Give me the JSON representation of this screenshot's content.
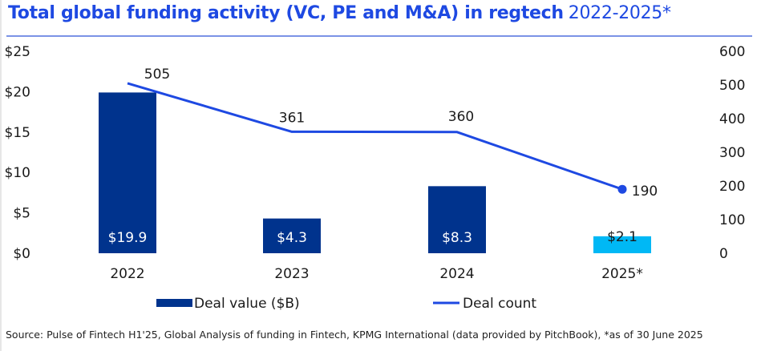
{
  "title": {
    "main": "Total global funding activity (VC, PE and M&A) in regtech",
    "period": "2022-2025*"
  },
  "chart_data": {
    "type": "bar",
    "title": "Total global funding activity (VC, PE and M&A) in regtech 2022-2025*",
    "categories": [
      "2022",
      "2023",
      "2024",
      "2025*"
    ],
    "series": [
      {
        "name": "Deal value ($B)",
        "type": "bar",
        "axis": "left",
        "values": [
          19.9,
          4.3,
          8.3,
          2.1
        ],
        "labels": [
          "$19.9",
          "$4.3",
          "$8.3",
          "$2.1"
        ],
        "colors": [
          "#00338d",
          "#00338d",
          "#00338d",
          "#00b8f5"
        ]
      },
      {
        "name": "Deal count",
        "type": "line",
        "axis": "right",
        "values": [
          505,
          361,
          360,
          190
        ],
        "labels": [
          "505",
          "361",
          "360",
          "190"
        ],
        "color": "#1e49e2",
        "end_marker": true
      }
    ],
    "left_axis": {
      "ylim": [
        0,
        25
      ],
      "ticks": [
        0,
        5,
        10,
        15,
        20,
        25
      ],
      "tick_labels": [
        "$0",
        "$5",
        "$10",
        "$15",
        "$20",
        "$25"
      ]
    },
    "right_axis": {
      "ylim": [
        0,
        600
      ],
      "ticks": [
        0,
        100,
        200,
        300,
        400,
        500,
        600
      ],
      "tick_labels": [
        "0",
        "100",
        "200",
        "300",
        "400",
        "500",
        "600"
      ]
    },
    "xlabel": "",
    "ylabel": "",
    "grid": false,
    "legend": {
      "position": "bottom",
      "entries": [
        "Deal value ($B)",
        "Deal count"
      ]
    }
  },
  "source": "Source: Pulse of Fintech H1'25, Global Analysis of funding in Fintech, KPMG International (data provided by PitchBook), *as of 30 June 2025"
}
